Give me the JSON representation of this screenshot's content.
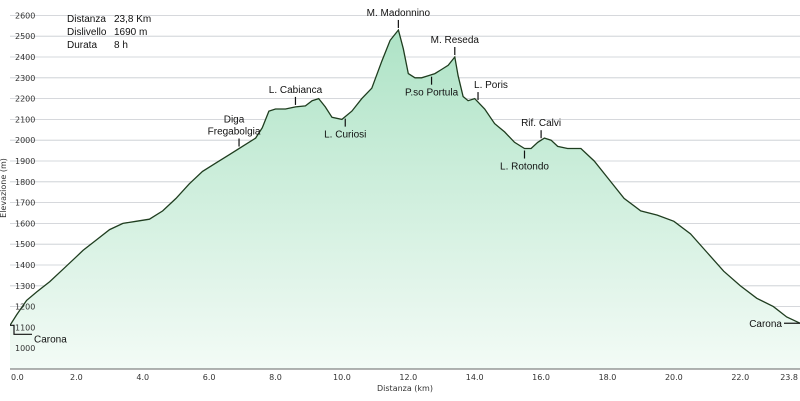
{
  "chart_data": {
    "type": "area",
    "xlabel": "Distanza  (km)",
    "ylabel": "Elevazione (m)",
    "xlim": [
      0,
      23.8
    ],
    "ylim": [
      900,
      2650
    ],
    "x_ticks": [
      "0.0",
      "2.0",
      "4.0",
      "6.0",
      "8.0",
      "10.0",
      "12.0",
      "14.0",
      "16.0",
      "18.0",
      "20.0",
      "22.0",
      "23.8"
    ],
    "y_ticks": [
      "1000",
      "1100",
      "1200",
      "1300",
      "1400",
      "1500",
      "1600",
      "1700",
      "1800",
      "1900",
      "2000",
      "2100",
      "2200",
      "2300",
      "2400",
      "2500",
      "2600"
    ],
    "x_tick_values": [
      0,
      2,
      4,
      6,
      8,
      10,
      12,
      14,
      16,
      18,
      20,
      22,
      23.8
    ],
    "y_tick_values": [
      1000,
      1100,
      1200,
      1300,
      1400,
      1500,
      1600,
      1700,
      1800,
      1900,
      2000,
      2100,
      2200,
      2300,
      2400,
      2500,
      2600
    ],
    "grid": true,
    "colors": {
      "fill_top": "#aee3c6",
      "fill_bottom": "#f3fbf6",
      "line": "#1f3d1f"
    },
    "info": [
      {
        "label": "Distanza",
        "value": "23,8 Km"
      },
      {
        "label": "Dislivello",
        "value": "1690 m"
      },
      {
        "label": "Durata",
        "value": "8 h"
      }
    ],
    "series": [
      {
        "x": [
          0,
          0.2,
          0.5,
          0.8,
          1.2,
          1.6,
          2.0,
          2.2,
          2.6,
          3.0,
          3.4,
          3.8,
          4.2,
          4.6,
          5.0,
          5.4,
          5.8,
          6.2,
          6.6,
          7.0,
          7.4,
          7.6,
          7.8,
          8.0,
          8.3,
          8.6,
          8.9,
          9.1,
          9.3,
          9.5,
          9.7,
          10.0,
          10.3,
          10.6,
          10.9,
          11.2,
          11.45,
          11.7,
          11.85,
          12.0,
          12.2,
          12.4,
          12.6,
          12.8,
          13.0,
          13.2,
          13.4,
          13.5,
          13.65,
          13.8,
          14.0,
          14.3,
          14.6,
          14.9,
          15.2,
          15.5,
          15.7,
          15.9,
          16.1,
          16.3,
          16.5,
          16.8,
          17.2,
          17.6,
          18.0,
          18.5,
          19.0,
          19.5,
          20.0,
          20.5,
          21.0,
          21.5,
          22.0,
          22.5,
          23.0,
          23.4,
          23.8
        ],
        "y": [
          1110,
          1160,
          1230,
          1270,
          1320,
          1380,
          1440,
          1470,
          1520,
          1570,
          1600,
          1610,
          1620,
          1660,
          1720,
          1790,
          1850,
          1890,
          1930,
          1970,
          2010,
          2060,
          2140,
          2150,
          2150,
          2160,
          2165,
          2190,
          2200,
          2160,
          2110,
          2100,
          2140,
          2200,
          2250,
          2380,
          2480,
          2530,
          2440,
          2320,
          2300,
          2300,
          2310,
          2320,
          2340,
          2360,
          2400,
          2310,
          2210,
          2190,
          2200,
          2150,
          2080,
          2040,
          1990,
          1960,
          1960,
          1990,
          2010,
          2000,
          1970,
          1960,
          1960,
          1900,
          1820,
          1720,
          1660,
          1640,
          1610,
          1550,
          1460,
          1370,
          1300,
          1240,
          1200,
          1150,
          1120
        ]
      }
    ],
    "annotations": [
      {
        "lines": [
          "M. Madonnino"
        ],
        "x": 11.7,
        "side": "above",
        "anchor": "middle",
        "dx": 0,
        "dy": 0
      },
      {
        "lines": [
          "M. Reseda"
        ],
        "x": 13.4,
        "side": "above",
        "anchor": "middle",
        "dx": 0,
        "dy": 0
      },
      {
        "lines": [
          "L. Cabianca"
        ],
        "x": 8.6,
        "side": "above",
        "anchor": "middle",
        "dx": 0,
        "dy": 0
      },
      {
        "lines": [
          "Diga",
          "Fregabolgia"
        ],
        "x": 6.9,
        "side": "above",
        "anchor": "middle",
        "dx": -5,
        "dy": 0
      },
      {
        "lines": [
          "L. Curiosi"
        ],
        "x": 10.1,
        "side": "below",
        "anchor": "middle",
        "dx": 0,
        "dy": 0
      },
      {
        "lines": [
          "P.so Portula"
        ],
        "x": 12.7,
        "side": "below",
        "anchor": "middle",
        "dx": 0,
        "dy": 0
      },
      {
        "lines": [
          "L. Poris"
        ],
        "x": 14.1,
        "side": "above",
        "anchor": "start",
        "dx": -4,
        "dy": 0
      },
      {
        "lines": [
          "Rif. Calvi"
        ],
        "x": 16.0,
        "side": "above",
        "anchor": "middle",
        "dx": 0,
        "dy": 0
      },
      {
        "lines": [
          "L. Rotondo"
        ],
        "x": 15.5,
        "side": "below",
        "anchor": "middle",
        "dx": 0,
        "dy": 0
      },
      {
        "lines": [
          "Carona"
        ],
        "x": 0.0,
        "side": "right-below",
        "anchor": "start",
        "dx": 0,
        "dy": 0
      },
      {
        "lines": [
          "Carona"
        ],
        "x": 23.8,
        "side": "left-below",
        "anchor": "end",
        "dx": 0,
        "dy": 0
      }
    ]
  }
}
